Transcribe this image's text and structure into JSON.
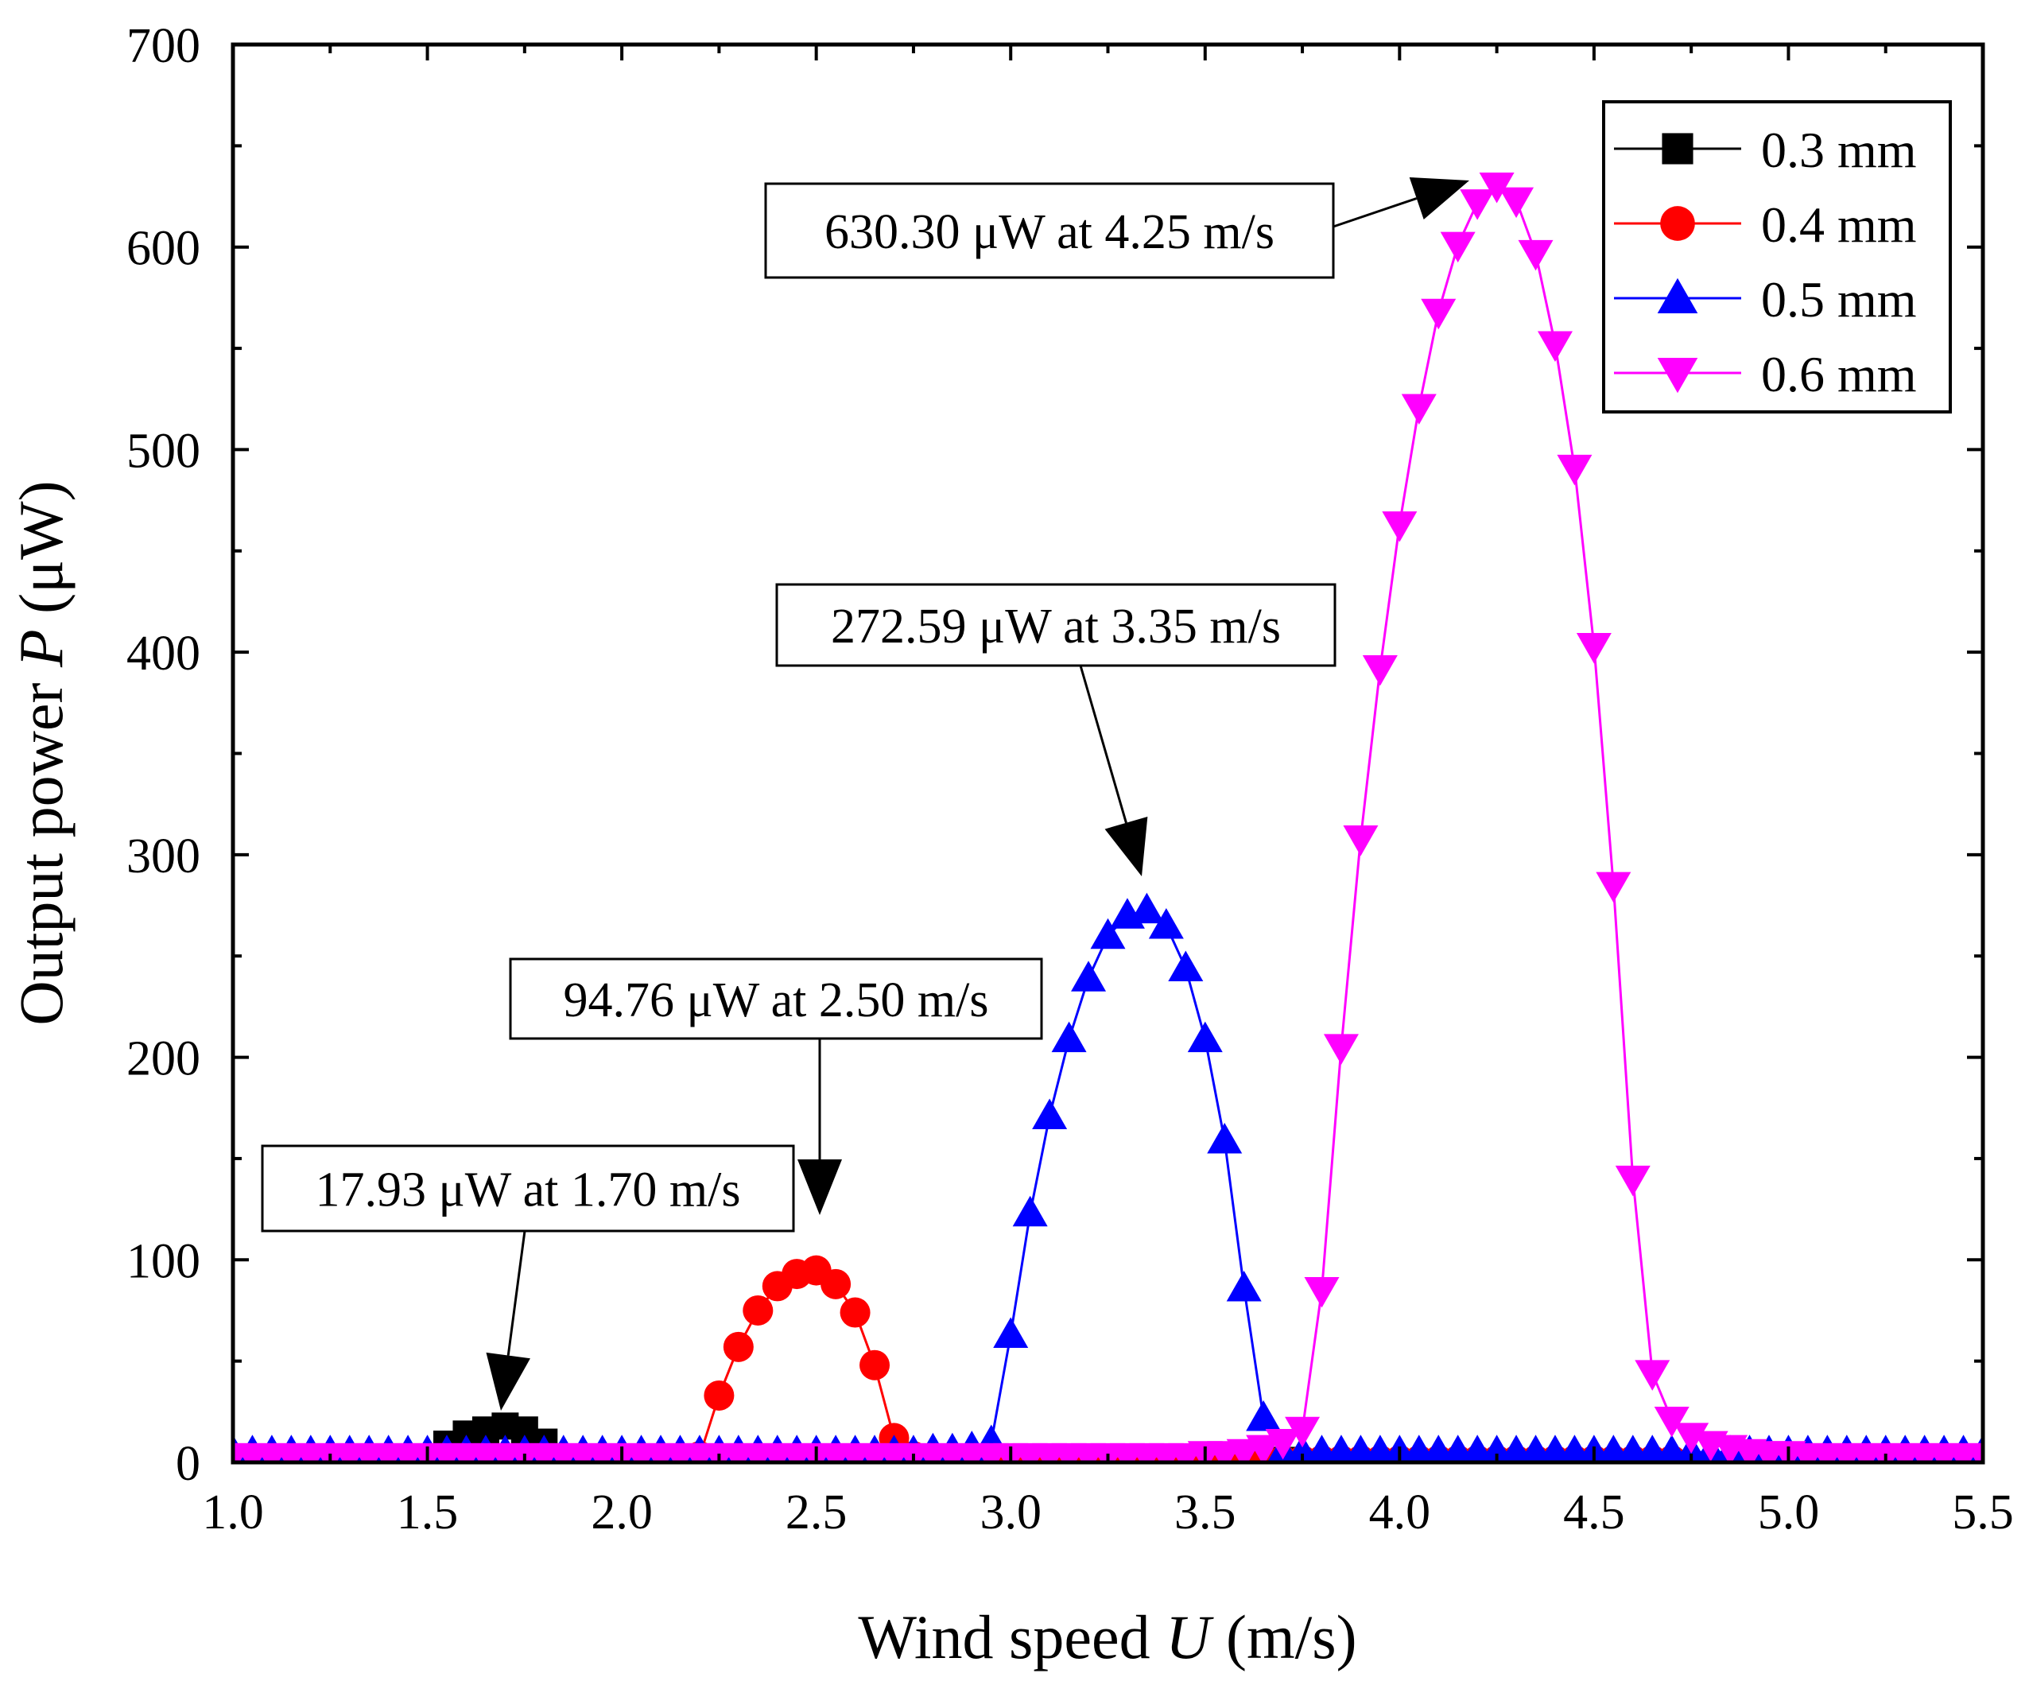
{
  "chart_data": {
    "type": "line",
    "title": "",
    "xlabel": {
      "prefix": "Wind speed ",
      "symbol": "U",
      "suffix": " (m/s)"
    },
    "ylabel": {
      "prefix": "Output power ",
      "symbol": "P",
      "suffix": " (μW)"
    },
    "xlim": [
      1.0,
      5.5
    ],
    "ylim": [
      0,
      700
    ],
    "xticks": [
      "1.0",
      "1.5",
      "2.0",
      "2.5",
      "3.0",
      "3.5",
      "4.0",
      "4.5",
      "5.0",
      "5.5"
    ],
    "yticks": [
      "0",
      "100",
      "200",
      "300",
      "400",
      "500",
      "600",
      "700"
    ],
    "grid": false,
    "legend_position": "top-right",
    "series": [
      {
        "name": "0.3 mm",
        "color": "#000000",
        "marker": "square",
        "x": [
          1.0,
          1.05,
          1.1,
          1.15,
          1.2,
          1.25,
          1.3,
          1.35,
          1.4,
          1.45,
          1.5,
          1.55,
          1.6,
          1.65,
          1.7,
          1.75,
          1.8,
          1.85,
          1.9,
          1.95,
          2.0,
          2.05,
          2.1,
          2.15,
          2.2,
          2.25,
          2.3,
          2.35,
          2.4,
          2.45,
          2.5,
          2.55,
          2.6,
          2.65,
          2.7,
          2.75,
          2.8,
          2.85,
          2.9,
          2.95,
          3.0,
          3.05,
          3.1,
          3.15,
          3.2,
          3.25,
          3.3,
          3.35,
          3.4,
          3.45,
          3.5,
          3.55,
          3.6,
          3.65,
          3.7
        ],
        "y": [
          1,
          1,
          1,
          1,
          1,
          1,
          1,
          1,
          1,
          1,
          1,
          9,
          14,
          16,
          17.93,
          16,
          10,
          1,
          1,
          1,
          1,
          1,
          1,
          1,
          1,
          1,
          1,
          1,
          1,
          1,
          1,
          1,
          1,
          1,
          1,
          1,
          1,
          1,
          1,
          1,
          1,
          1,
          1,
          1,
          1,
          1,
          1,
          1,
          1,
          1,
          1,
          1,
          1,
          1,
          1
        ]
      },
      {
        "name": "0.4 mm",
        "color": "#ff0000",
        "marker": "circle",
        "x": [
          2.2,
          2.25,
          2.3,
          2.35,
          2.4,
          2.45,
          2.5,
          2.55,
          2.6,
          2.65,
          2.7,
          2.75,
          2.8,
          2.85,
          2.9,
          2.95,
          3.0,
          3.05,
          3.1,
          3.15,
          3.2,
          3.25,
          3.3,
          3.35,
          3.4,
          3.45,
          3.5,
          3.55,
          3.6,
          3.65,
          3.7,
          3.75,
          3.8,
          3.85,
          3.9,
          3.95,
          4.0,
          4.05,
          4.1,
          4.15,
          4.2,
          4.25,
          4.3,
          4.35,
          4.4,
          4.45,
          4.5,
          4.55,
          4.6,
          4.65,
          4.7
        ],
        "y": [
          3,
          33,
          57,
          75,
          87,
          93,
          94.76,
          88,
          74,
          48,
          12,
          3,
          1,
          1,
          1,
          1,
          1,
          1,
          1,
          1,
          1,
          1,
          1,
          1,
          1,
          1,
          1,
          1,
          1,
          1,
          1,
          1,
          1,
          1,
          1,
          1,
          1,
          1,
          1,
          1,
          1,
          1,
          1,
          1,
          1,
          1,
          1,
          1,
          1,
          1,
          1
        ]
      },
      {
        "name": "0.5 mm",
        "color": "#0000ff",
        "marker": "triangle-up",
        "x": [
          1.0,
          1.05,
          1.1,
          1.15,
          1.2,
          1.25,
          1.3,
          1.35,
          1.4,
          1.45,
          1.5,
          1.55,
          1.6,
          1.65,
          1.7,
          1.75,
          1.8,
          1.85,
          1.9,
          1.95,
          2.0,
          2.05,
          2.1,
          2.15,
          2.2,
          2.25,
          2.3,
          2.35,
          2.4,
          2.45,
          2.5,
          2.55,
          2.6,
          2.65,
          2.7,
          2.75,
          2.8,
          2.85,
          2.9,
          2.95,
          3.0,
          3.05,
          3.1,
          3.15,
          3.2,
          3.25,
          3.3,
          3.35,
          3.4,
          3.45,
          3.5,
          3.55,
          3.6,
          3.65,
          3.7,
          3.75,
          3.8,
          3.85,
          3.9,
          3.95,
          4.0,
          4.05,
          4.1,
          4.15,
          4.2,
          4.25,
          4.3,
          4.35,
          4.4,
          4.45,
          4.5,
          4.55,
          4.6,
          4.65,
          4.7,
          4.75,
          4.8,
          4.85,
          4.9,
          4.95,
          5.0,
          5.05,
          5.1,
          5.15,
          5.2,
          5.25,
          5.3,
          5.35,
          5.4,
          5.45,
          5.5
        ],
        "y": [
          5,
          5,
          5,
          5,
          5,
          5,
          5,
          5,
          5,
          5,
          5,
          5,
          5,
          5,
          5,
          5,
          5,
          5,
          5,
          5,
          5,
          5,
          5,
          5,
          5,
          5,
          5,
          5,
          5,
          5,
          5,
          5,
          5,
          5,
          5,
          5,
          6,
          6,
          7,
          10,
          63,
          123,
          171,
          209,
          239,
          260,
          270,
          272.59,
          265,
          244,
          209,
          159,
          86,
          22,
          5,
          5,
          5,
          5,
          5,
          5,
          5,
          5,
          5,
          5,
          5,
          5,
          5,
          5,
          5,
          5,
          5,
          5,
          5,
          5,
          5,
          5,
          5,
          5,
          5,
          5,
          5,
          5,
          5,
          5,
          5,
          5,
          5,
          5,
          5,
          5,
          5
        ]
      },
      {
        "name": "0.6 mm",
        "color": "#ff00ff",
        "marker": "triangle-down",
        "x": [
          1.0,
          1.05,
          1.1,
          1.15,
          1.2,
          1.25,
          1.3,
          1.35,
          1.4,
          1.45,
          1.5,
          1.55,
          1.6,
          1.65,
          1.7,
          1.75,
          1.8,
          1.85,
          1.9,
          1.95,
          2.0,
          2.05,
          2.1,
          2.15,
          2.2,
          2.25,
          2.3,
          2.35,
          2.4,
          2.45,
          2.5,
          2.55,
          2.6,
          2.65,
          2.7,
          2.75,
          2.8,
          2.85,
          2.9,
          2.95,
          3.0,
          3.05,
          3.1,
          3.15,
          3.2,
          3.25,
          3.3,
          3.35,
          3.4,
          3.45,
          3.5,
          3.55,
          3.6,
          3.65,
          3.7,
          3.75,
          3.8,
          3.85,
          3.9,
          3.95,
          4.0,
          4.05,
          4.1,
          4.15,
          4.2,
          4.25,
          4.3,
          4.35,
          4.4,
          4.45,
          4.5,
          4.55,
          4.6,
          4.65,
          4.7,
          4.75,
          4.8,
          4.85,
          4.9,
          4.95,
          5.0,
          5.05,
          5.1,
          5.15,
          5.2,
          5.25,
          5.3,
          5.35,
          5.4,
          5.45,
          5.5
        ],
        "y": [
          3,
          3,
          3,
          3,
          3,
          3,
          3,
          3,
          3,
          3,
          3,
          3,
          3,
          3,
          3,
          3,
          3,
          3,
          3,
          3,
          3,
          3,
          3,
          3,
          3,
          3,
          3,
          3,
          3,
          3,
          3,
          3,
          3,
          3,
          3,
          3,
          3,
          3,
          3,
          3,
          3,
          3,
          3,
          3,
          3,
          3,
          3,
          3,
          3,
          3,
          4,
          4,
          5,
          7,
          10,
          16,
          85,
          205,
          308,
          392,
          463,
          521,
          568,
          601,
          622,
          630.3,
          623,
          597,
          552,
          491,
          403,
          285,
          140,
          44,
          21,
          13,
          9,
          7,
          5,
          4,
          4,
          3,
          3,
          3,
          3,
          3,
          3,
          3,
          3,
          3,
          3
        ]
      }
    ],
    "annotations": [
      {
        "text": "630.30 μW at 4.25 m/s",
        "x": 4.25,
        "y": 630.3
      },
      {
        "text": "272.59 μW at 3.35 m/s",
        "x": 3.35,
        "y": 272.59
      },
      {
        "text": "94.76 μW at 2.50 m/s",
        "x": 2.5,
        "y": 94.76
      },
      {
        "text": "17.93 μW at 1.70 m/s",
        "x": 1.7,
        "y": 17.93
      }
    ]
  }
}
